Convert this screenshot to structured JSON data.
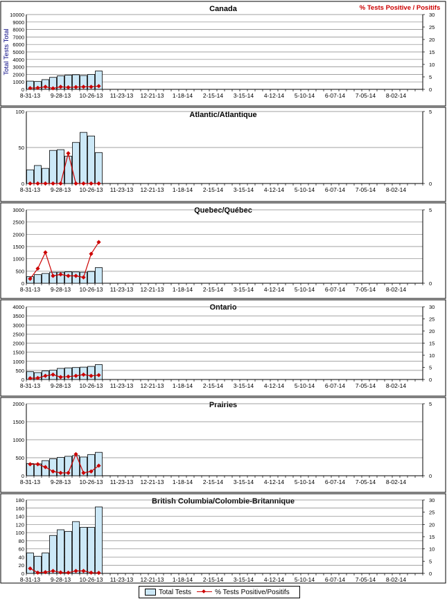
{
  "right_axis_title": "% Tests Positive / Positifs",
  "left_axis_title": "Total Tests Total",
  "x_tick_labels": [
    "8-31-13",
    "9-28-13",
    "10-26-13",
    "11-23-13",
    "12-21-13",
    "1-18-14",
    "2-15-14",
    "3-15-14",
    "4-12-14",
    "5-10-14",
    "6-07-14",
    "7-05-14",
    "8-02-14"
  ],
  "colors": {
    "bar_fill": "#cce8f7",
    "line": "#cc0000",
    "grid": "#808080"
  },
  "legend": {
    "bars": "Total Tests",
    "line": "% Tests Positive/Positifs"
  },
  "chart_data": [
    {
      "type": "bar",
      "title": "Canada",
      "ylim": [
        0,
        10000
      ],
      "yticks": [
        0,
        1000,
        2000,
        3000,
        4000,
        5000,
        6000,
        7000,
        8000,
        9000,
        10000
      ],
      "y2lim": [
        0,
        30
      ],
      "y2ticks": [
        0,
        5,
        10,
        15,
        20,
        25,
        30
      ],
      "series": [
        {
          "kind": "bar",
          "values": [
            1100,
            1050,
            1300,
            1600,
            1800,
            1900,
            1950,
            1850,
            2000,
            2450
          ]
        },
        {
          "kind": "line",
          "values": [
            0.5,
            0.6,
            1.0,
            0.4,
            1.0,
            0.8,
            0.9,
            1.0,
            1.0,
            1.3
          ]
        }
      ]
    },
    {
      "type": "bar",
      "title": "Atlantic/Atlantique",
      "ylim": [
        0,
        100
      ],
      "yticks": [
        0,
        50,
        100
      ],
      "y2lim": [
        0,
        5
      ],
      "y2ticks": [
        0,
        5
      ],
      "series": [
        {
          "kind": "bar",
          "values": [
            19,
            25,
            21,
            46,
            47,
            38,
            57,
            71,
            66,
            43
          ]
        },
        {
          "kind": "line",
          "values": [
            0,
            0,
            0,
            0,
            0,
            2.1,
            0,
            0,
            0,
            0
          ]
        }
      ]
    },
    {
      "type": "bar",
      "title": "Quebec/Québec",
      "ylim": [
        0,
        3000
      ],
      "yticks": [
        0,
        500,
        1000,
        1500,
        2000,
        2500,
        3000
      ],
      "y2lim": [
        0,
        5
      ],
      "y2ticks": [
        0,
        5
      ],
      "series": [
        {
          "kind": "bar",
          "values": [
            270,
            350,
            400,
            450,
            450,
            470,
            460,
            450,
            480,
            640
          ]
        },
        {
          "kind": "line",
          "values": [
            0.3,
            1.0,
            2.1,
            0.5,
            0.6,
            0.5,
            0.5,
            0.4,
            2.0,
            2.8
          ]
        }
      ]
    },
    {
      "type": "bar",
      "title": "Ontario",
      "ylim": [
        0,
        4000
      ],
      "yticks": [
        0,
        500,
        1000,
        1500,
        2000,
        2500,
        3000,
        3500,
        4000
      ],
      "y2lim": [
        0,
        30
      ],
      "y2ticks": [
        0,
        5,
        10,
        15,
        20,
        25,
        30
      ],
      "series": [
        {
          "kind": "bar",
          "values": [
            430,
            380,
            470,
            510,
            610,
            640,
            660,
            680,
            720,
            820
          ]
        },
        {
          "kind": "line",
          "values": [
            0.5,
            0.6,
            1.5,
            2.0,
            1.0,
            1.2,
            1.5,
            2.0,
            1.5,
            1.8
          ]
        }
      ]
    },
    {
      "type": "bar",
      "title": "Prairies",
      "ylim": [
        0,
        2000
      ],
      "yticks": [
        0,
        500,
        1000,
        1500,
        2000
      ],
      "y2lim": [
        0,
        5
      ],
      "y2ticks": [
        0,
        5
      ],
      "series": [
        {
          "kind": "bar",
          "values": [
            340,
            330,
            420,
            470,
            510,
            540,
            560,
            520,
            590,
            650
          ]
        },
        {
          "kind": "line",
          "values": [
            0.8,
            0.8,
            0.6,
            0.3,
            0.2,
            0.2,
            1.5,
            0.2,
            0.3,
            0.7
          ]
        }
      ]
    },
    {
      "type": "bar",
      "title": "British Columbia/Colombie-Britannique",
      "ylim": [
        0,
        180
      ],
      "yticks": [
        0,
        20,
        40,
        60,
        80,
        100,
        120,
        140,
        160,
        180
      ],
      "y2lim": [
        0,
        30
      ],
      "y2ticks": [
        0,
        5,
        10,
        15,
        20,
        25,
        30
      ],
      "series": [
        {
          "kind": "bar",
          "values": [
            50,
            42,
            50,
            93,
            107,
            103,
            127,
            113,
            113,
            163
          ]
        },
        {
          "kind": "line",
          "values": [
            2.0,
            0.3,
            0.5,
            1.0,
            0.4,
            0.3,
            1.0,
            1.0,
            0.3,
            0.2
          ]
        }
      ]
    }
  ]
}
